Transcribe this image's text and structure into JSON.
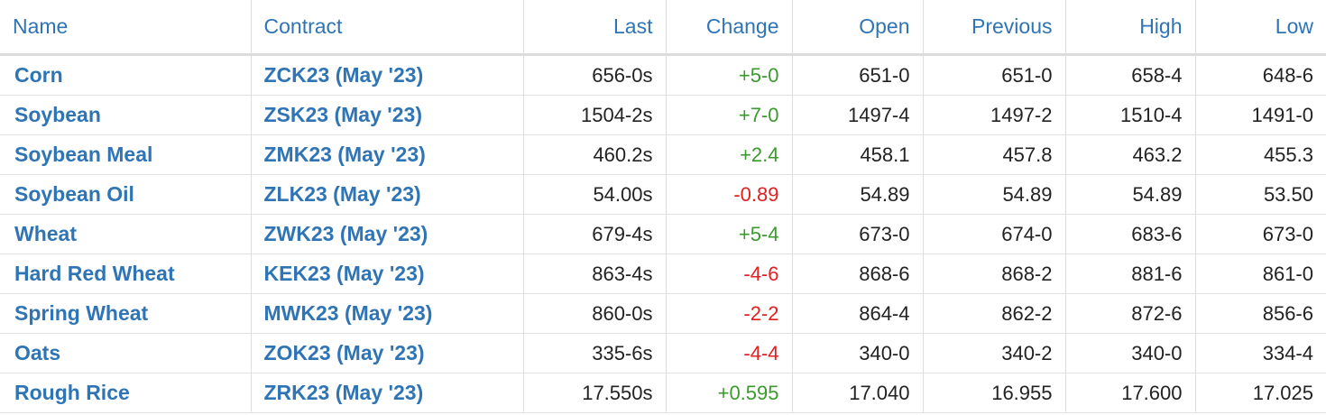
{
  "columns": {
    "name": "Name",
    "contract": "Contract",
    "last": "Last",
    "change": "Change",
    "open": "Open",
    "previous": "Previous",
    "high": "High",
    "low": "Low"
  },
  "colors": {
    "link": "#2f74b5",
    "positive": "#3a9a2c",
    "negative": "#e02020",
    "text": "#222222"
  },
  "rows": [
    {
      "name": "Corn",
      "contract": "ZCK23 (May '23)",
      "last": "656-0s",
      "change": "+5-0",
      "direction": "up",
      "open": "651-0",
      "previous": "651-0",
      "high": "658-4",
      "low": "648-6"
    },
    {
      "name": "Soybean",
      "contract": "ZSK23 (May '23)",
      "last": "1504-2s",
      "change": "+7-0",
      "direction": "up",
      "open": "1497-4",
      "previous": "1497-2",
      "high": "1510-4",
      "low": "1491-0"
    },
    {
      "name": "Soybean Meal",
      "contract": "ZMK23 (May '23)",
      "last": "460.2s",
      "change": "+2.4",
      "direction": "up",
      "open": "458.1",
      "previous": "457.8",
      "high": "463.2",
      "low": "455.3"
    },
    {
      "name": "Soybean Oil",
      "contract": "ZLK23 (May '23)",
      "last": "54.00s",
      "change": "-0.89",
      "direction": "down",
      "open": "54.89",
      "previous": "54.89",
      "high": "54.89",
      "low": "53.50"
    },
    {
      "name": "Wheat",
      "contract": "ZWK23 (May '23)",
      "last": "679-4s",
      "change": "+5-4",
      "direction": "up",
      "open": "673-0",
      "previous": "674-0",
      "high": "683-6",
      "low": "673-0"
    },
    {
      "name": "Hard Red Wheat",
      "contract": "KEK23 (May '23)",
      "last": "863-4s",
      "change": "-4-6",
      "direction": "down",
      "open": "868-6",
      "previous": "868-2",
      "high": "881-6",
      "low": "861-0"
    },
    {
      "name": "Spring Wheat",
      "contract": "MWK23 (May '23)",
      "last": "860-0s",
      "change": "-2-2",
      "direction": "down",
      "open": "864-4",
      "previous": "862-2",
      "high": "872-6",
      "low": "856-6"
    },
    {
      "name": "Oats",
      "contract": "ZOK23 (May '23)",
      "last": "335-6s",
      "change": "-4-4",
      "direction": "down",
      "open": "340-0",
      "previous": "340-2",
      "high": "340-0",
      "low": "334-4"
    },
    {
      "name": "Rough Rice",
      "contract": "ZRK23 (May '23)",
      "last": "17.550s",
      "change": "+0.595",
      "direction": "up",
      "open": "17.040",
      "previous": "16.955",
      "high": "17.600",
      "low": "17.025"
    }
  ]
}
